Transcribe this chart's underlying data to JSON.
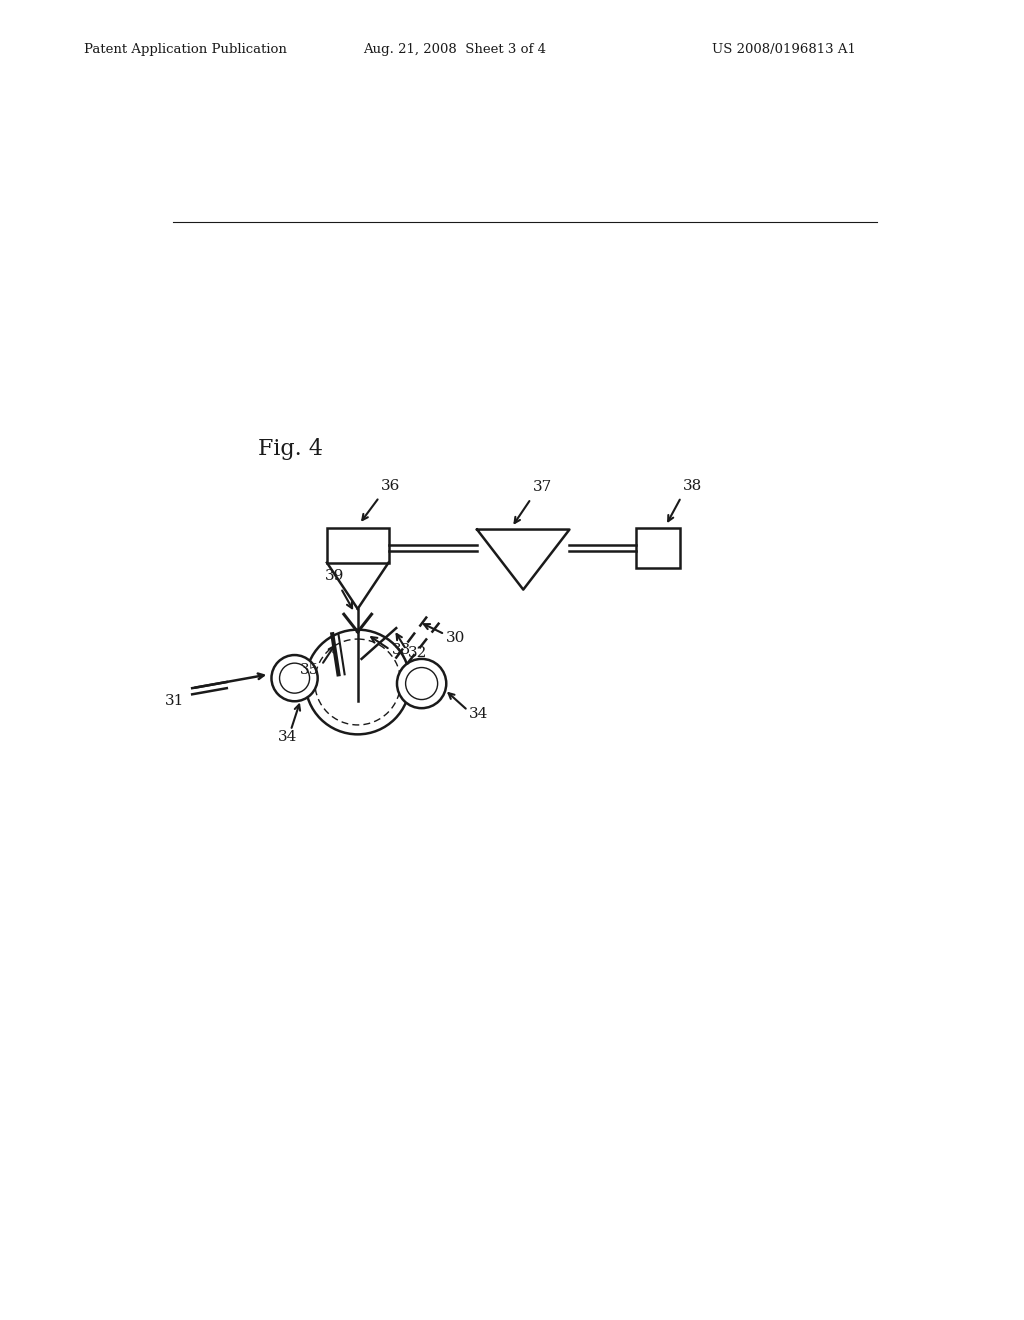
{
  "bg_color": "#ffffff",
  "header_left": "Patent Application Publication",
  "header_center": "Aug. 21, 2008  Sheet 3 of 4",
  "header_right": "US 2008/0196813 A1",
  "fig_label": "Fig. 4"
}
